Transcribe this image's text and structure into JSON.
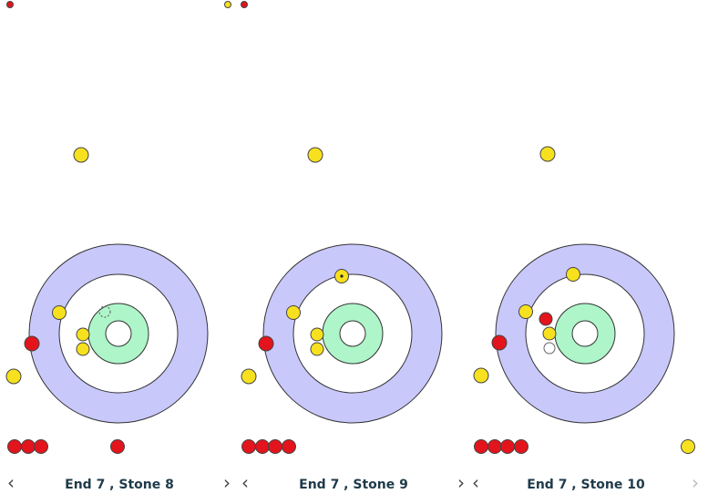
{
  "panels": [
    {
      "prev": "‹",
      "label": "End 7 , Stone 8",
      "next": "›"
    },
    {
      "prev": "‹",
      "label": "End 7 , Stone 9",
      "next": "›"
    },
    {
      "prev": "‹",
      "label": "End 7 , Stone 10",
      "next": "›"
    }
  ]
}
